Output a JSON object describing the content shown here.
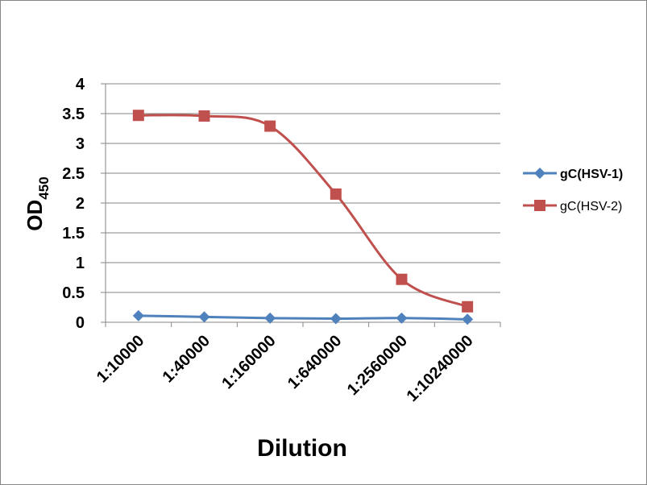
{
  "chart_data": {
    "type": "line",
    "categories": [
      "1:10000",
      "1:40000",
      "1:160000",
      "1:640000",
      "1:2560000",
      "1:10240000"
    ],
    "series": [
      {
        "name": "gC(HSV-1)",
        "values": [
          0.11,
          0.09,
          0.07,
          0.06,
          0.07,
          0.05
        ],
        "color": "#4F81BD",
        "marker": "diamond",
        "bold_label": true
      },
      {
        "name": "gC(HSV-2)",
        "values": [
          3.47,
          3.46,
          3.29,
          2.15,
          0.72,
          0.26
        ],
        "color": "#C0504D",
        "marker": "square",
        "bold_label": false
      }
    ],
    "xlabel": "Dilution",
    "ylabel": "OD",
    "ylabel_subscript": "450",
    "ylim": [
      0,
      4
    ],
    "yticks": [
      "0",
      "0.5",
      "1",
      "1.5",
      "2",
      "2.5",
      "3",
      "3.5",
      "4"
    ],
    "grid": true,
    "smoothed": true,
    "legend": "right"
  }
}
